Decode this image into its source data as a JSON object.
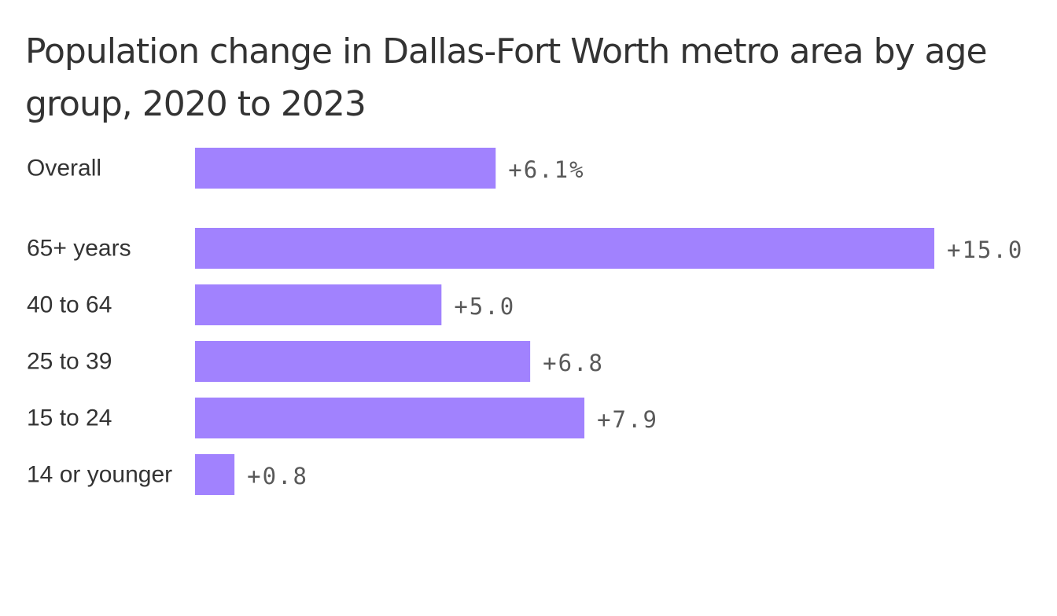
{
  "chart_data": {
    "type": "bar",
    "orientation": "horizontal",
    "title": "Population change in Dallas-Fort Worth metro area by age group, 2020 to 2023",
    "categories": [
      "Overall",
      "65+ years",
      "40 to 64",
      "25 to 39",
      "15 to 24",
      "14 or younger"
    ],
    "values": [
      6.1,
      15.0,
      5.0,
      6.8,
      7.9,
      0.8
    ],
    "value_labels": [
      "+6.1%",
      "+15.0",
      "+5.0",
      "+6.8",
      "+7.9",
      "+0.8"
    ],
    "xlim": [
      0,
      15
    ],
    "grid": false,
    "legend": "none",
    "bar_color": "#a182fe"
  }
}
